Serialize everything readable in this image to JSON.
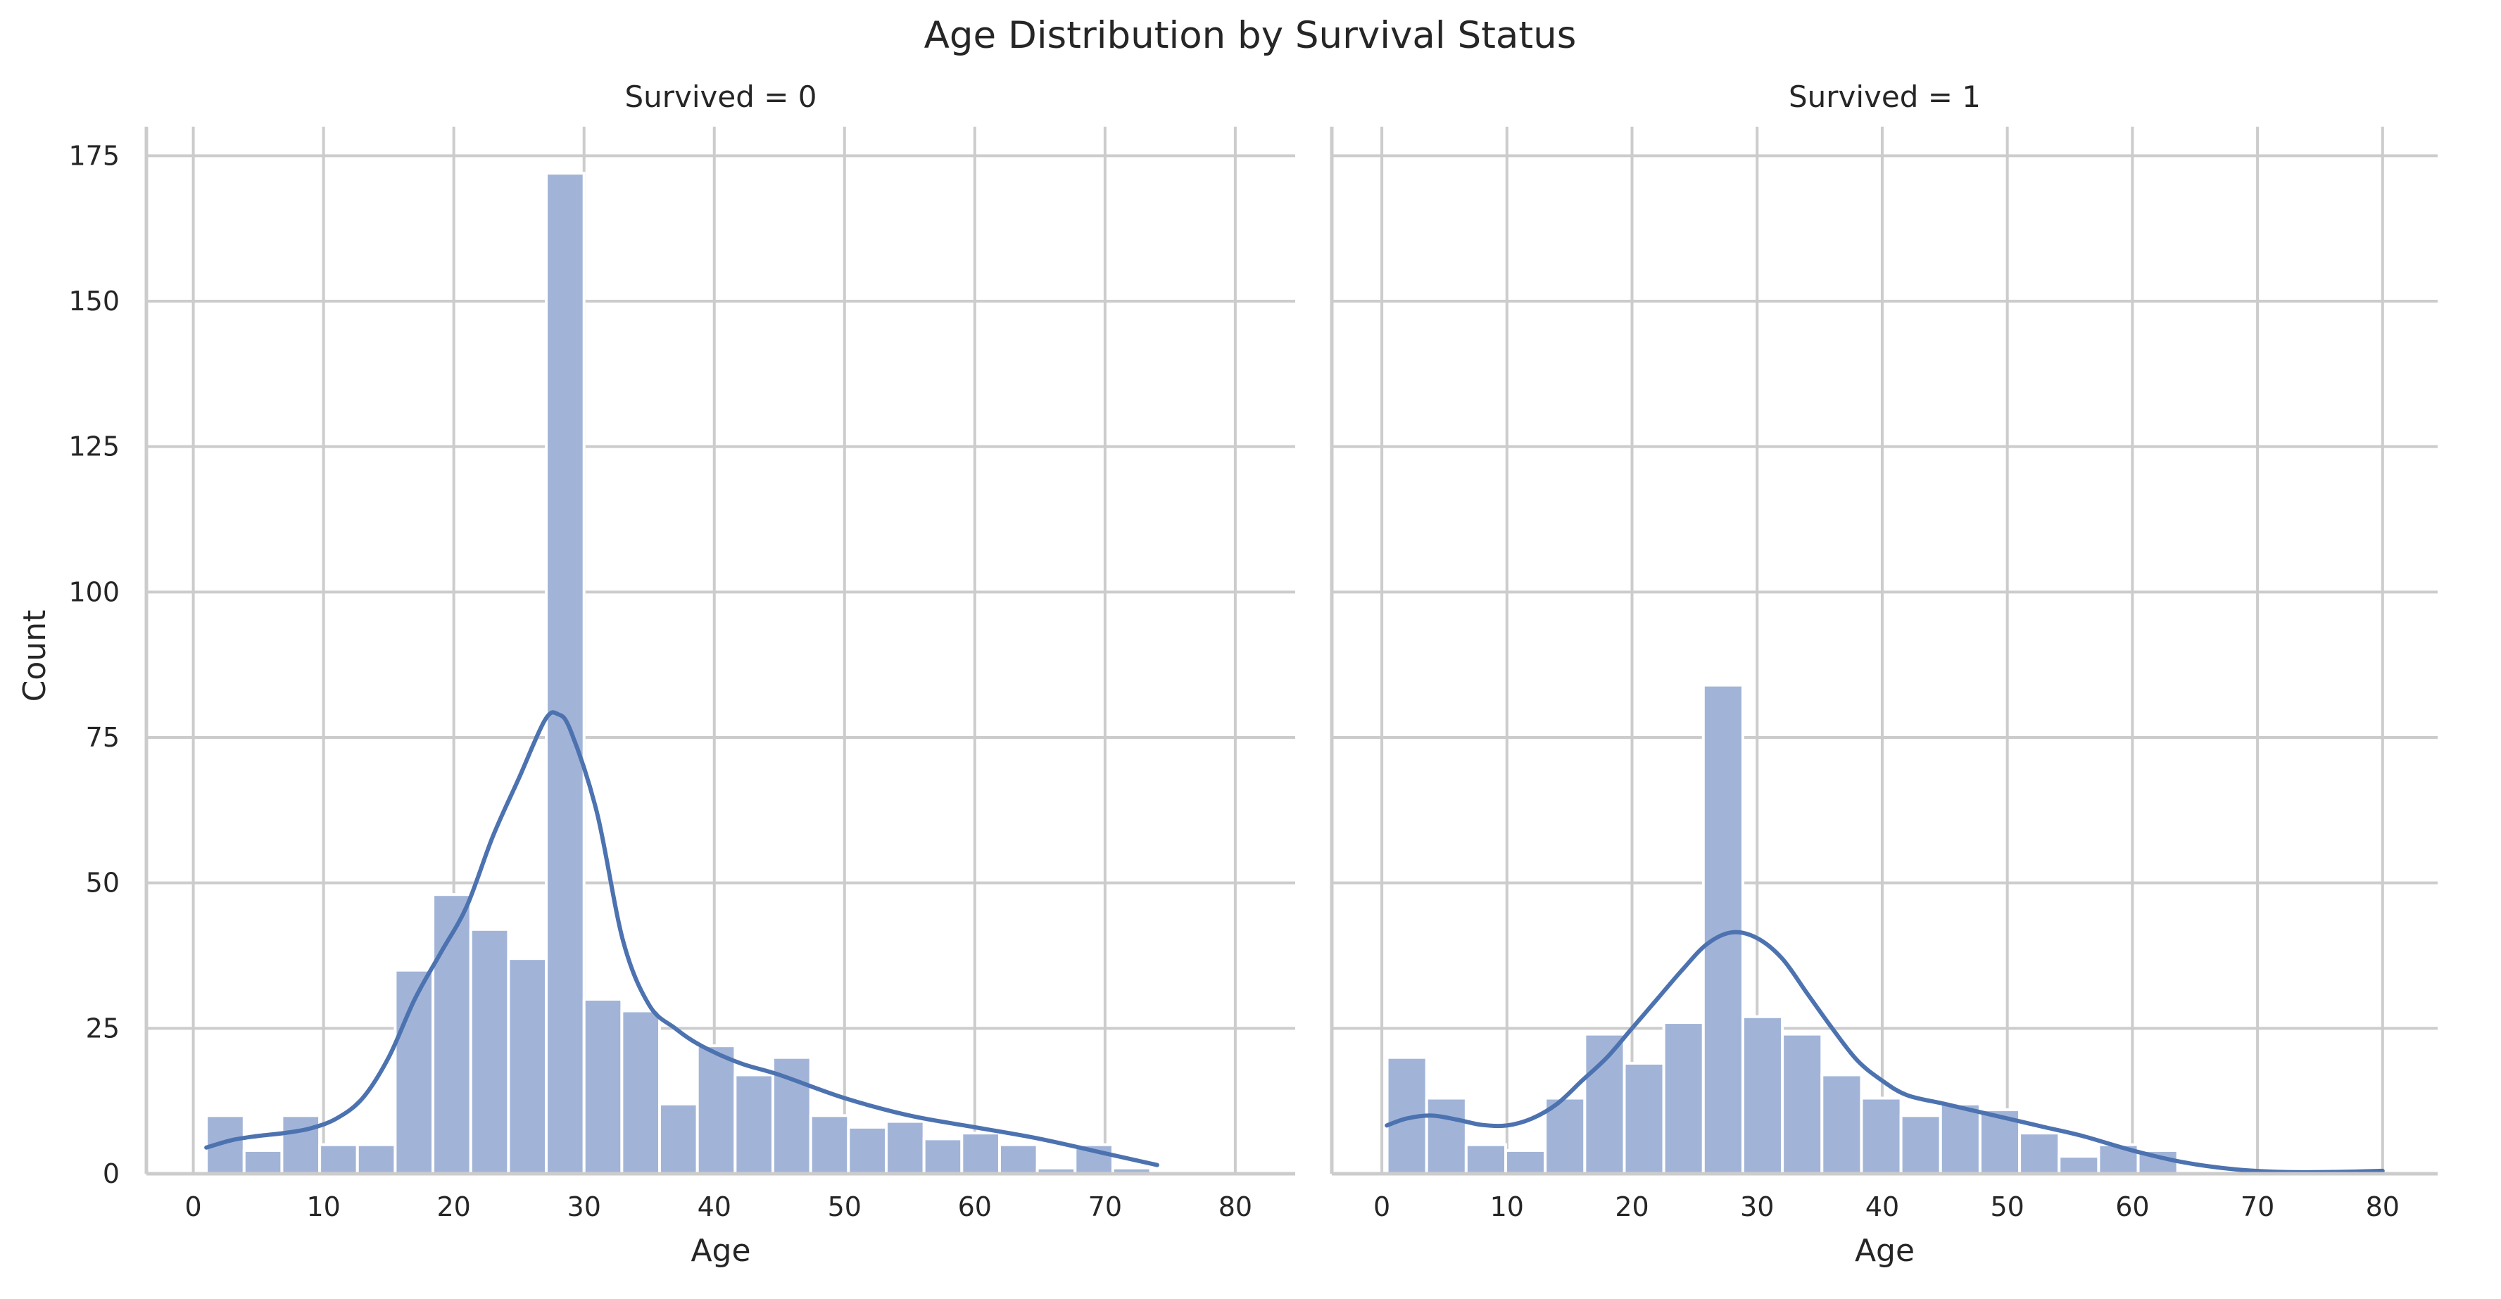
{
  "chart_data": {
    "type": "bar",
    "title": "Age Distribution by Survival Status",
    "ylabel": "Count",
    "ylim": [
      0,
      180
    ],
    "yticks": [
      0,
      25,
      50,
      75,
      100,
      125,
      150,
      175
    ],
    "grid": true,
    "kde_color": "#4c72b0",
    "bar_color": "#a1b4d8",
    "bar_edge_color": "#ffffff",
    "grid_color": "#cccccc",
    "panels": [
      {
        "title": "Survived = 0",
        "xlabel": "Age",
        "xlim": [
          -3.6,
          84.6
        ],
        "xticks": [
          0,
          10,
          20,
          30,
          40,
          50,
          60,
          70,
          80
        ],
        "bin_width": 2.9,
        "bin_starts": [
          1.0,
          3.9,
          6.8,
          9.7,
          12.6,
          15.5,
          18.4,
          21.3,
          24.2,
          27.1,
          30.0,
          32.9,
          35.8,
          38.7,
          41.6,
          44.5,
          47.4,
          50.3,
          53.2,
          56.1,
          59.0,
          61.9,
          64.8,
          67.7,
          70.6
        ],
        "counts": [
          10,
          4,
          10,
          5,
          5,
          35,
          48,
          42,
          37,
          172,
          30,
          28,
          12,
          22,
          17,
          20,
          10,
          8,
          9,
          6,
          7,
          5,
          1,
          5,
          1
        ],
        "kde": {
          "x": [
            1,
            3,
            5,
            7,
            9,
            11,
            13,
            15,
            17,
            19,
            21,
            23,
            25,
            27,
            28,
            29,
            31,
            33,
            35,
            37,
            39,
            42,
            45,
            50,
            55,
            60,
            65,
            70,
            74
          ],
          "y": [
            4.5,
            5.8,
            6.5,
            7.0,
            7.8,
            9.5,
            13,
            20,
            30,
            38,
            46,
            58,
            68,
            78,
            79,
            76,
            62,
            40,
            29,
            25,
            22,
            19,
            17,
            13,
            10,
            8,
            6,
            3.5,
            1.5
          ]
        }
      },
      {
        "title": "Survived = 1",
        "xlabel": "Age",
        "xlim": [
          -4.0,
          84.4
        ],
        "xticks": [
          0,
          10,
          20,
          30,
          40,
          50,
          60,
          70,
          80
        ],
        "bin_width": 3.16,
        "bin_starts": [
          0.42,
          3.58,
          6.74,
          9.9,
          13.06,
          16.22,
          19.38,
          22.54,
          25.7,
          28.86,
          32.02,
          35.18,
          38.34,
          41.5,
          44.66,
          47.82,
          50.98,
          54.14,
          57.3,
          60.46
        ],
        "counts": [
          20,
          13,
          5,
          4,
          13,
          24,
          19,
          26,
          84,
          27,
          24,
          17,
          13,
          10,
          12,
          11,
          7,
          3,
          5,
          4
        ],
        "kde": {
          "x": [
            0.4,
            2,
            4,
            6,
            8,
            10,
            12,
            14,
            16,
            18,
            20,
            22,
            24,
            26,
            28,
            30,
            32,
            34,
            36,
            38,
            40,
            42,
            45,
            48,
            50,
            53,
            56,
            60,
            64,
            68,
            72,
            76,
            80
          ],
          "y": [
            8.3,
            9.5,
            10,
            9.3,
            8.4,
            8.3,
            9.5,
            12,
            16,
            20,
            25,
            30,
            35,
            39.5,
            41.5,
            40.5,
            37,
            31,
            25,
            19.5,
            16,
            13.5,
            12,
            10.5,
            9.5,
            8,
            6.5,
            4,
            2,
            0.8,
            0.3,
            0.3,
            0.5
          ]
        }
      }
    ]
  }
}
